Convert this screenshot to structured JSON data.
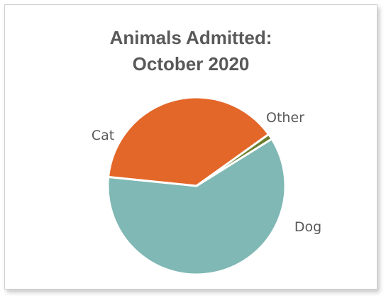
{
  "chart_data": {
    "type": "pie",
    "title": [
      "Animals Admitted:",
      "October 2020"
    ],
    "categories": [
      "Cat",
      "Dog",
      "Other"
    ],
    "values": [
      60.5,
      38.5,
      1.0
    ],
    "colors": [
      "#7FB8B4",
      "#E36729",
      "#6A7F2E"
    ],
    "legend": "none",
    "data_labels": "category-name"
  }
}
